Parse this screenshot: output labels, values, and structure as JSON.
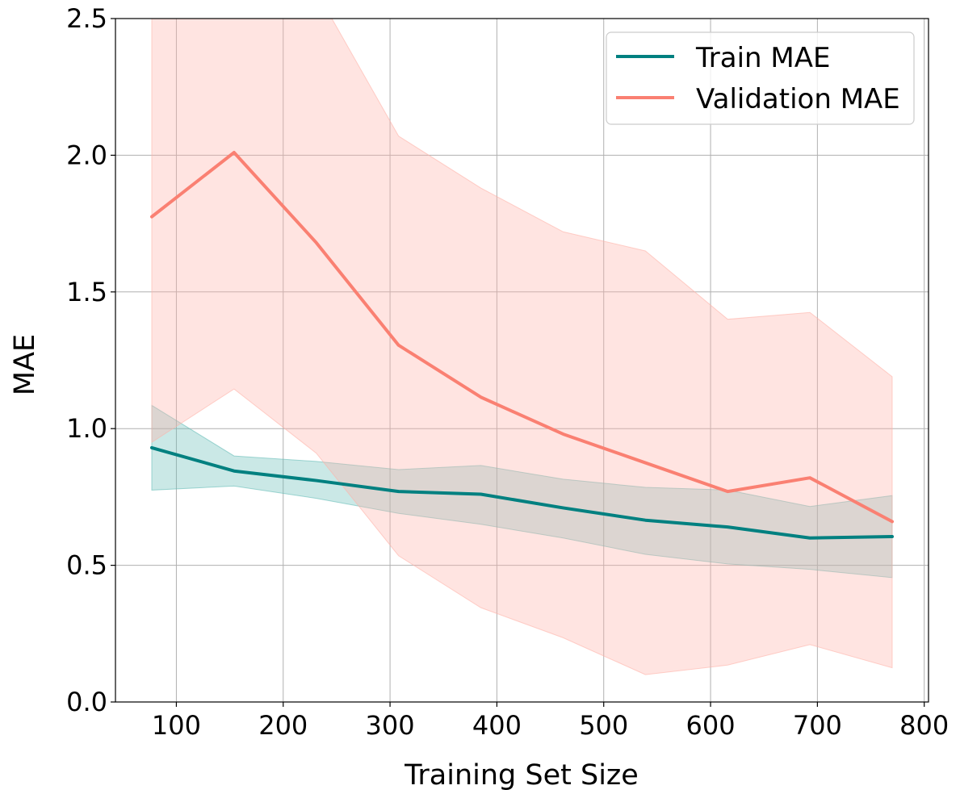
{
  "chart_data": {
    "type": "line",
    "title": "",
    "xlabel": "Training Set Size",
    "ylabel": "MAE",
    "xlim": [
      43,
      804
    ],
    "ylim": [
      0.0,
      2.5
    ],
    "x_ticks": [
      "100",
      "200",
      "300",
      "400",
      "500",
      "600",
      "700",
      "800"
    ],
    "y_ticks": [
      "0.0",
      "0.5",
      "1.0",
      "1.5",
      "2.0",
      "2.5"
    ],
    "grid": true,
    "legend_position": "top-right",
    "x": [
      77,
      154,
      231,
      308,
      385,
      462,
      539,
      616,
      693,
      770
    ],
    "series": [
      {
        "name": "Train MAE",
        "color": "#008080",
        "band_color": "#66bdb7",
        "values": [
          0.93,
          0.845,
          0.81,
          0.77,
          0.76,
          0.71,
          0.665,
          0.64,
          0.6,
          0.605
        ],
        "band_upper": [
          1.085,
          0.9,
          0.88,
          0.85,
          0.865,
          0.815,
          0.785,
          0.775,
          0.715,
          0.755
        ],
        "band_lower": [
          0.775,
          0.79,
          0.745,
          0.69,
          0.65,
          0.6,
          0.54,
          0.505,
          0.485,
          0.455
        ]
      },
      {
        "name": "Validation MAE",
        "color": "#fa8072",
        "band_color": "#ffb3a8",
        "values": [
          1.775,
          2.01,
          1.68,
          1.305,
          1.115,
          0.98,
          0.875,
          0.77,
          0.82,
          0.66
        ],
        "band_upper": [
          2.6,
          2.9,
          2.6,
          2.07,
          1.88,
          1.72,
          1.65,
          1.4,
          1.425,
          1.19
        ],
        "band_lower": [
          0.95,
          1.145,
          0.91,
          0.535,
          0.345,
          0.235,
          0.1,
          0.135,
          0.21,
          0.125
        ]
      }
    ]
  }
}
